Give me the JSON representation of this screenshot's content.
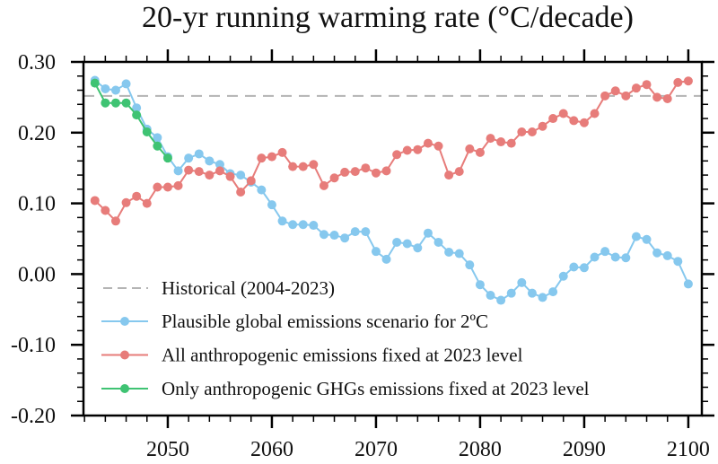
{
  "chart_data": {
    "type": "line",
    "title": "20-yr running warming rate (°C/decade)",
    "xlabel": "",
    "ylabel": "",
    "xlim": [
      2041.9,
      2101.3
    ],
    "ylim": [
      -0.2,
      0.3
    ],
    "x_ticks": [
      2050,
      2060,
      2070,
      2080,
      2090,
      2100
    ],
    "y_ticks": [
      0.3,
      0.2,
      0.1,
      0.0,
      -0.1,
      -0.2
    ],
    "y_tick_labels": [
      "0.30",
      "0.20",
      "0.10",
      "0.00",
      "-0.10",
      "-0.20"
    ],
    "grid": false,
    "legend_position": "bottom-left",
    "reference_lines": [
      {
        "name": "Historical (2004-2023)",
        "y": 0.252,
        "color": "#b4b4b4",
        "style": "dashed"
      }
    ],
    "series": [
      {
        "name": "Plausible global emissions scenario for 2ºC",
        "color": "#86c8ee",
        "x_start": 2043,
        "values": [
          0.274,
          0.262,
          0.26,
          0.269,
          0.235,
          0.205,
          0.193,
          0.166,
          0.146,
          0.164,
          0.17,
          0.16,
          0.155,
          0.142,
          0.14,
          0.13,
          0.119,
          0.098,
          0.075,
          0.07,
          0.07,
          0.069,
          0.056,
          0.055,
          0.051,
          0.06,
          0.06,
          0.032,
          0.021,
          0.045,
          0.043,
          0.037,
          0.058,
          0.045,
          0.031,
          0.029,
          0.013,
          -0.015,
          -0.03,
          -0.037,
          -0.027,
          -0.012,
          -0.027,
          -0.033,
          -0.025,
          -0.003,
          0.01,
          0.009,
          0.024,
          0.032,
          0.024,
          0.023,
          0.053,
          0.049,
          0.03,
          0.026,
          0.018,
          -0.014
        ]
      },
      {
        "name": "All anthropogenic emissions fixed at 2023 level",
        "color": "#e77c7a",
        "x_start": 2043,
        "values": [
          0.104,
          0.09,
          0.075,
          0.101,
          0.11,
          0.1,
          0.123,
          0.123,
          0.125,
          0.147,
          0.145,
          0.14,
          0.146,
          0.138,
          0.116,
          0.132,
          0.164,
          0.166,
          0.172,
          0.152,
          0.152,
          0.155,
          0.125,
          0.136,
          0.144,
          0.145,
          0.15,
          0.143,
          0.146,
          0.169,
          0.175,
          0.176,
          0.185,
          0.181,
          0.14,
          0.145,
          0.177,
          0.172,
          0.192,
          0.187,
          0.185,
          0.201,
          0.201,
          0.209,
          0.22,
          0.227,
          0.217,
          0.214,
          0.227,
          0.252,
          0.259,
          0.252,
          0.263,
          0.268,
          0.25,
          0.248,
          0.271,
          0.273
        ]
      },
      {
        "name": "Only anthropogenic GHGs emissions fixed at 2023 level",
        "color": "#3fc373",
        "x_start": 2043,
        "values": [
          0.27,
          0.242,
          0.242,
          0.242,
          0.225,
          0.201,
          0.181,
          0.164
        ]
      }
    ]
  }
}
